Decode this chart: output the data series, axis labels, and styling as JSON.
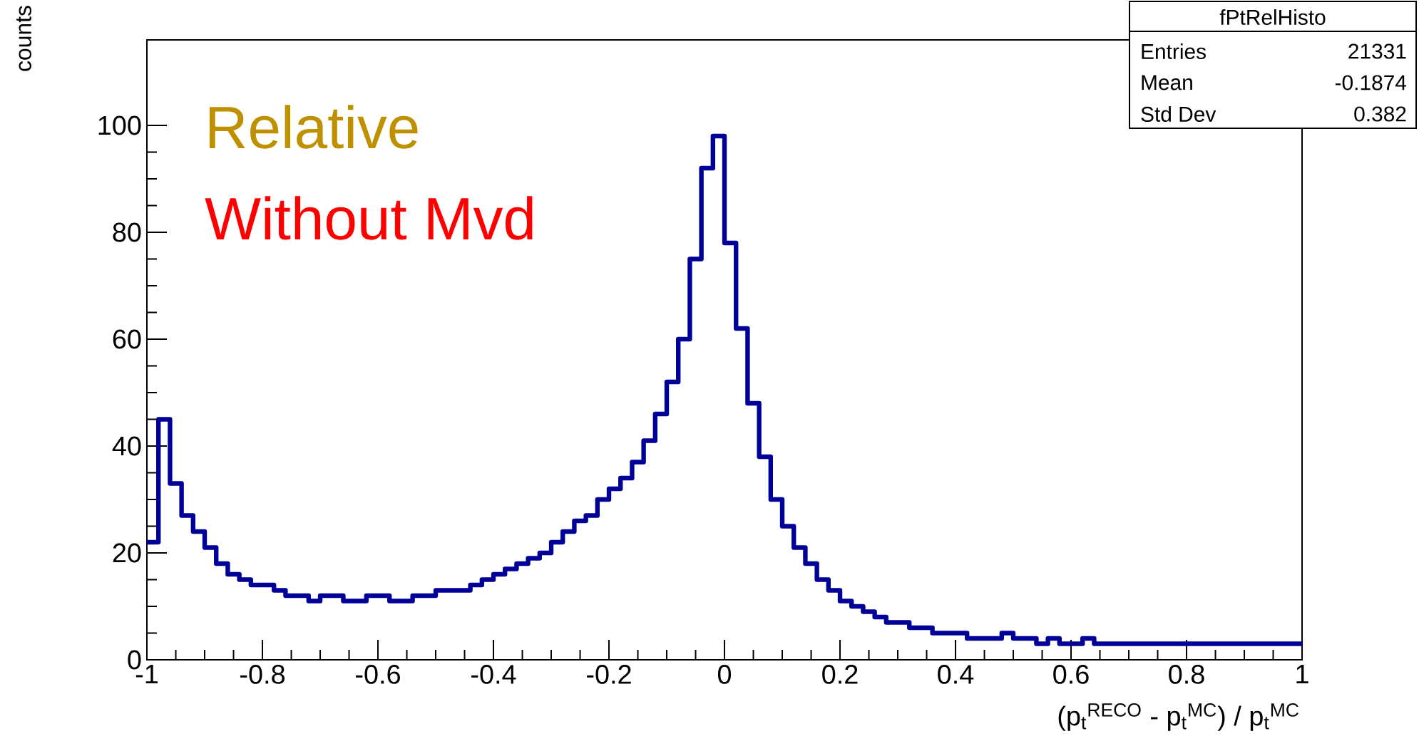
{
  "chart_data": {
    "type": "histogram",
    "title": "fPtRelHisto",
    "xlabel": "(p$_{t}$$^{RECO}$ - p$_{t}$$^{MC}$) / p$_{t}$$^{MC}$",
    "ylabel": "counts",
    "annotations": [
      "Relative",
      "Without Mvd",
      "Entries",
      "21331",
      "Mean",
      "-0.1874",
      "Std Dev",
      "0.382"
    ],
    "bins": [
      -1.0,
      -0.98,
      -0.96,
      -0.94,
      -0.92,
      -0.9,
      -0.88,
      -0.86,
      -0.84,
      -0.82,
      -0.8,
      -0.78,
      -0.76,
      -0.74,
      -0.72,
      -0.7,
      -0.68,
      -0.66,
      -0.64,
      -0.62,
      -0.6,
      -0.58,
      -0.56,
      -0.54,
      -0.52,
      -0.5,
      -0.48,
      -0.46,
      -0.44,
      -0.42,
      -0.4,
      -0.38,
      -0.36,
      -0.34,
      -0.32,
      -0.3,
      -0.28,
      -0.26,
      -0.24,
      -0.22,
      -0.2,
      -0.18,
      -0.16,
      -0.14,
      -0.12,
      -0.1,
      -0.08,
      -0.06,
      -0.04,
      -0.02,
      0.0,
      0.02,
      0.04,
      0.06,
      0.08,
      0.1,
      0.12,
      0.14,
      0.16,
      0.18,
      0.2,
      0.22,
      0.24,
      0.26,
      0.28,
      0.3,
      0.32,
      0.34,
      0.36,
      0.38,
      0.4,
      0.42,
      0.44,
      0.46,
      0.48,
      0.5,
      0.52,
      0.54,
      0.56,
      0.58,
      0.6,
      0.62,
      0.64,
      0.66,
      0.68,
      0.7,
      0.72,
      0.74,
      0.76,
      0.78,
      0.8,
      0.82,
      0.84,
      0.86,
      0.88,
      0.9,
      0.92,
      0.94,
      0.96,
      0.98,
      1.0
    ],
    "values": [
      22,
      45,
      33,
      27,
      24,
      21,
      18,
      16,
      15,
      14,
      14,
      13,
      12,
      12,
      11,
      12,
      12,
      11,
      11,
      12,
      12,
      11,
      11,
      12,
      12,
      13,
      13,
      13,
      14,
      15,
      16,
      17,
      18,
      19,
      20,
      22,
      24,
      26,
      27,
      30,
      32,
      34,
      37,
      41,
      46,
      52,
      60,
      75,
      92,
      98,
      78,
      62,
      48,
      38,
      30,
      25,
      21,
      18,
      15,
      13,
      11,
      10,
      9,
      8,
      7,
      7,
      6,
      6,
      5,
      5,
      5,
      4,
      4,
      4,
      5,
      4,
      4,
      3,
      4,
      3,
      3,
      4,
      3,
      3,
      3,
      3,
      3,
      3,
      3,
      3,
      3,
      3,
      3,
      3,
      3,
      3,
      3,
      3,
      3,
      3
    ],
    "color": "#000099",
    "xlim": [
      -1,
      1
    ],
    "ylim": [
      0,
      116
    ],
    "xticks": [
      -1,
      -0.8,
      -0.6,
      -0.4,
      -0.2,
      0,
      0.2,
      0.4,
      0.6,
      0.8,
      1
    ],
    "yticks": [
      0,
      20,
      40,
      60,
      80,
      100
    ]
  }
}
